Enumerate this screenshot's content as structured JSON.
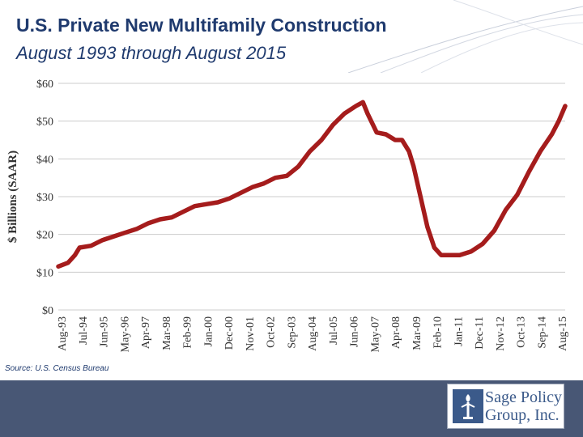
{
  "header": {
    "title": "U.S. Private New Multifamily Construction",
    "subtitle": "August 1993 through August 2015"
  },
  "source": "Source: U.S. Census Bureau",
  "logo": {
    "line1": "Sage Policy",
    "line2": "Group, Inc."
  },
  "colors": {
    "title": "#1f3a6e",
    "line": "#a51c1c",
    "grid": "#cccccc",
    "footer": "#485775",
    "logo": "#3b5a8a"
  },
  "chart_data": {
    "type": "line",
    "title": "U.S. Private New Multifamily Construction",
    "xlabel": "",
    "ylabel": "$ Billions (SAAR)",
    "ylim": [
      0,
      60
    ],
    "grid": true,
    "y_ticks": [
      0,
      10,
      20,
      30,
      40,
      50,
      60
    ],
    "y_tick_labels": [
      "$0",
      "$10",
      "$20",
      "$30",
      "$40",
      "$50",
      "$60"
    ],
    "x_tick_labels": [
      "Aug-93",
      "Jul-94",
      "Jun-95",
      "May-96",
      "Apr-97",
      "Mar-98",
      "Feb-99",
      "Jan-00",
      "Dec-00",
      "Nov-01",
      "Oct-02",
      "Sep-03",
      "Aug-04",
      "Jul-05",
      "Jun-06",
      "May-07",
      "Apr-08",
      "Mar-09",
      "Feb-10",
      "Jan-11",
      "Dec-11",
      "Nov-12",
      "Oct-13",
      "Sep-14",
      "Aug-15"
    ],
    "series": [
      {
        "name": "U.S. Private New Multifamily Construction",
        "x": [
          1993.58,
          1994.0,
          1994.3,
          1994.5,
          1995.0,
          1995.5,
          1996.0,
          1996.5,
          1997.0,
          1997.5,
          1998.0,
          1998.5,
          1999.0,
          1999.5,
          2000.0,
          2000.5,
          2001.0,
          2001.5,
          2002.0,
          2002.5,
          2003.0,
          2003.5,
          2004.0,
          2004.5,
          2005.0,
          2005.5,
          2006.0,
          2006.5,
          2006.8,
          2007.0,
          2007.4,
          2007.8,
          2008.2,
          2008.5,
          2008.8,
          2009.0,
          2009.3,
          2009.6,
          2009.9,
          2010.2,
          2010.5,
          2011.0,
          2011.5,
          2012.0,
          2012.5,
          2013.0,
          2013.5,
          2014.0,
          2014.5,
          2015.0,
          2015.3,
          2015.58
        ],
        "values": [
          11.5,
          12.5,
          14.5,
          16.5,
          17,
          18.5,
          19.5,
          20.5,
          21.5,
          23,
          24,
          24.5,
          26,
          27.5,
          28,
          28.5,
          29.5,
          31,
          32.5,
          33.5,
          35,
          35.5,
          38,
          42,
          45,
          49,
          52,
          54,
          55,
          52,
          47,
          46.5,
          45,
          45,
          42,
          38,
          30,
          22,
          16.5,
          14.5,
          14.5,
          14.5,
          15.5,
          17.5,
          21,
          26.5,
          30.5,
          36.5,
          42,
          46.5,
          50,
          54
        ]
      }
    ]
  }
}
